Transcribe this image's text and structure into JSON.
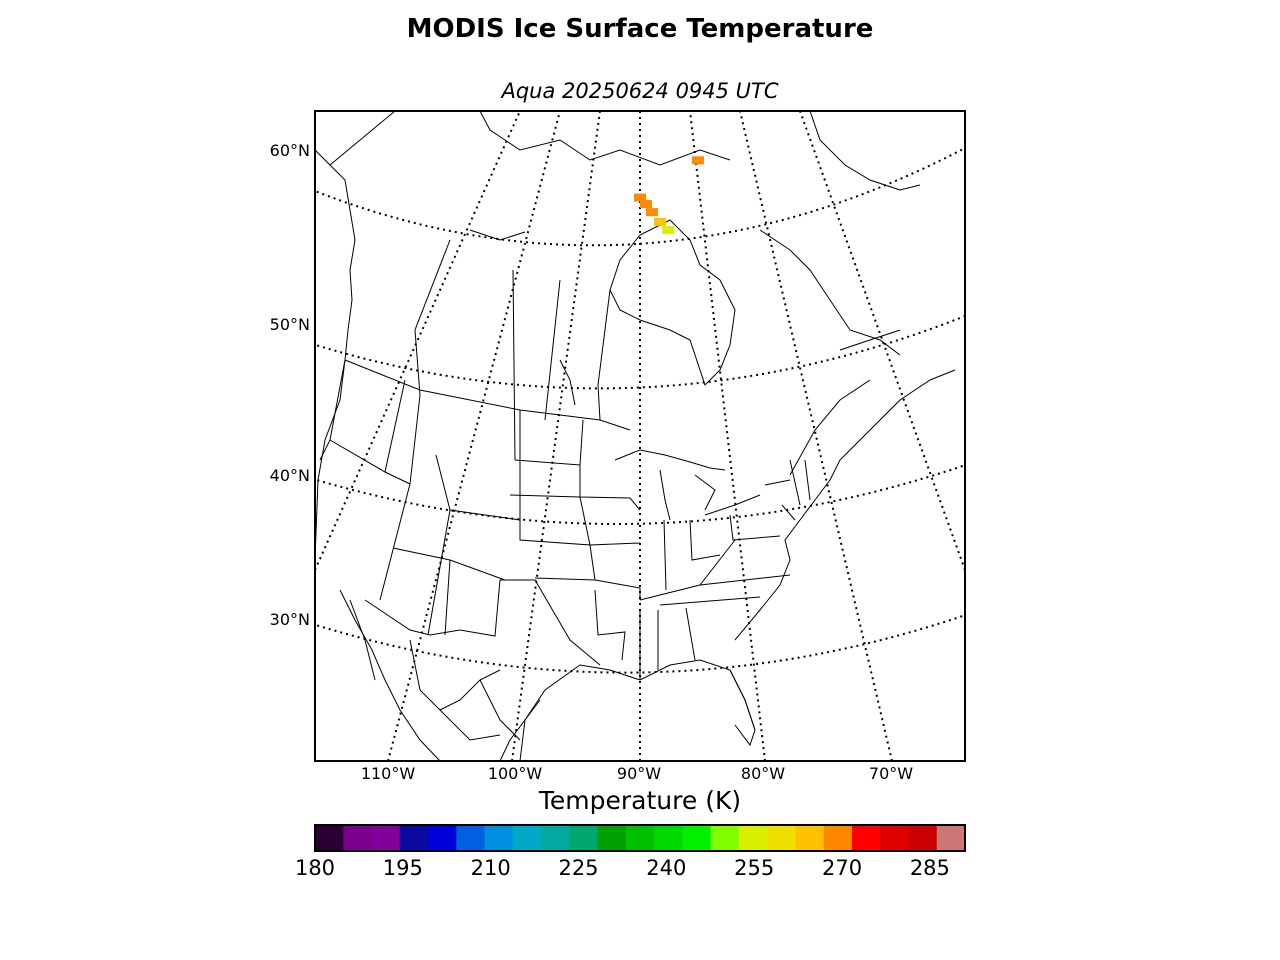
{
  "title": "MODIS Ice Surface Temperature",
  "subtitle": "Aqua 20250624 0945 UTC",
  "lat_labels": [
    "60°N",
    "50°N",
    "40°N",
    "30°N"
  ],
  "lon_labels": [
    "110°W",
    "100°W",
    "90°W",
    "80°W",
    "70°W"
  ],
  "colorbar": {
    "label": "Temperature (K)",
    "min": 180,
    "max": 291,
    "ticks": [
      "180",
      "195",
      "210",
      "225",
      "240",
      "255",
      "270",
      "285"
    ],
    "colors": [
      "#2a0033",
      "#7a008c",
      "#84009a",
      "#0a0aa0",
      "#0000d8",
      "#0060e0",
      "#0090e0",
      "#00a8c8",
      "#00aaa0",
      "#00a870",
      "#00a000",
      "#00c000",
      "#00d800",
      "#00f000",
      "#80ff00",
      "#d8f000",
      "#f0e000",
      "#ffc000",
      "#ff8800",
      "#ff0000",
      "#e00000",
      "#cc0000",
      "#cc7777"
    ]
  },
  "map": {
    "projection": "polar stereographic",
    "region": "North America",
    "ice_temperature_points": [
      {
        "lat": 56.2,
        "lon": -90.2,
        "temp_k": 268
      },
      {
        "lat": 55.8,
        "lon": -89.6,
        "temp_k": 268
      },
      {
        "lat": 55.3,
        "lon": -89.0,
        "temp_k": 270
      },
      {
        "lat": 54.7,
        "lon": -88.2,
        "temp_k": 266
      },
      {
        "lat": 54.2,
        "lon": -87.4,
        "temp_k": 256
      },
      {
        "lat": 58.5,
        "lon": -84.2,
        "temp_k": 270
      }
    ]
  }
}
